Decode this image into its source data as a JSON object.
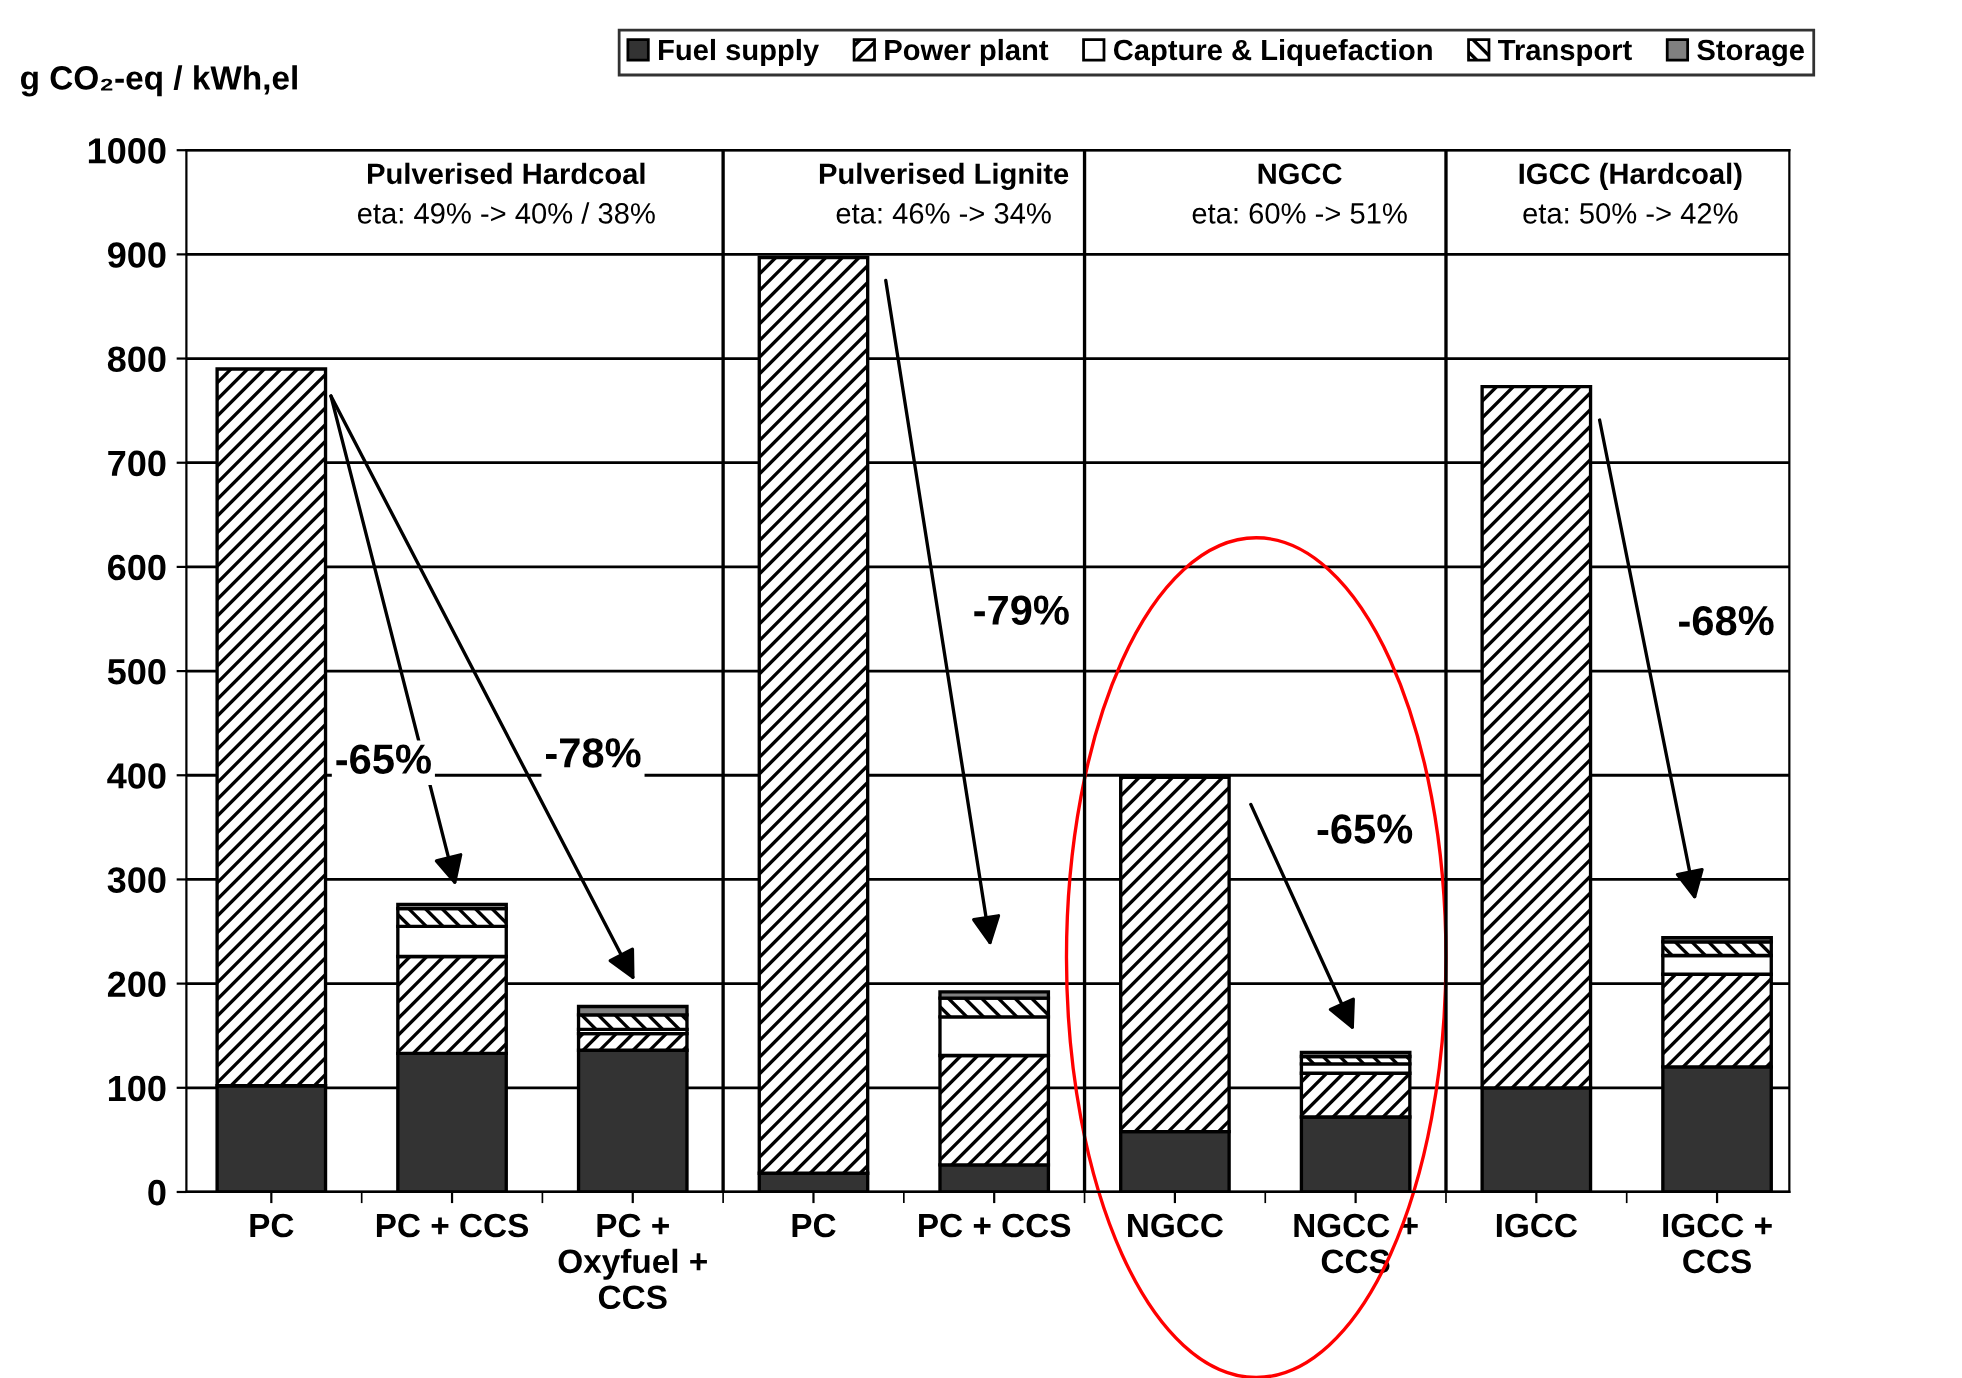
{
  "chart_data": {
    "type": "bar",
    "stacked": true,
    "ylabel": "g CO₂-eq / kWh,el",
    "categories": [
      "PC",
      "PC + CCS",
      "PC +\nOxyfuel +\nCCS",
      "PC",
      "PC + CCS",
      "NGCC",
      "NGCC +\nCCS",
      "IGCC",
      "IGCC +\nCCS"
    ],
    "series": [
      {
        "name": "Fuel supply",
        "color": "#333333",
        "values": [
          102,
          133,
          136,
          18,
          26,
          58,
          72,
          100,
          120
        ]
      },
      {
        "name": "Power plant",
        "color": "#000000",
        "values": [
          688,
          93,
          16,
          879,
          105,
          340,
          42,
          673,
          89
        ]
      },
      {
        "name": "Capture & Liquefaction",
        "color": "#ffffff",
        "values": [
          null,
          29,
          4,
          null,
          37,
          null,
          9,
          null,
          18
        ]
      },
      {
        "name": "Transport",
        "color": "#000000",
        "values": [
          null,
          17,
          14,
          null,
          18,
          null,
          7,
          null,
          13
        ]
      },
      {
        "name": "Storage",
        "color": "#808080",
        "values": [
          null,
          4,
          8,
          null,
          6,
          null,
          4,
          null,
          4
        ]
      }
    ],
    "ylim": [
      0,
      1000
    ],
    "yticks": [
      0,
      100,
      200,
      300,
      400,
      500,
      600,
      700,
      800,
      900,
      1000
    ],
    "grid": "y",
    "legend": "top",
    "annotations": [
      "Pulverised Hardcoal\neta: 49% -> 40% / 38%",
      "Pulverised Lignite\neta: 46% -> 34%",
      "NGCC\neta: 60% -> 51%",
      "IGCC (Hardcoal)\neta: 50% -> 42%",
      "-65%",
      "-78%",
      "-79%",
      "-65%",
      "-68%"
    ]
  }
}
